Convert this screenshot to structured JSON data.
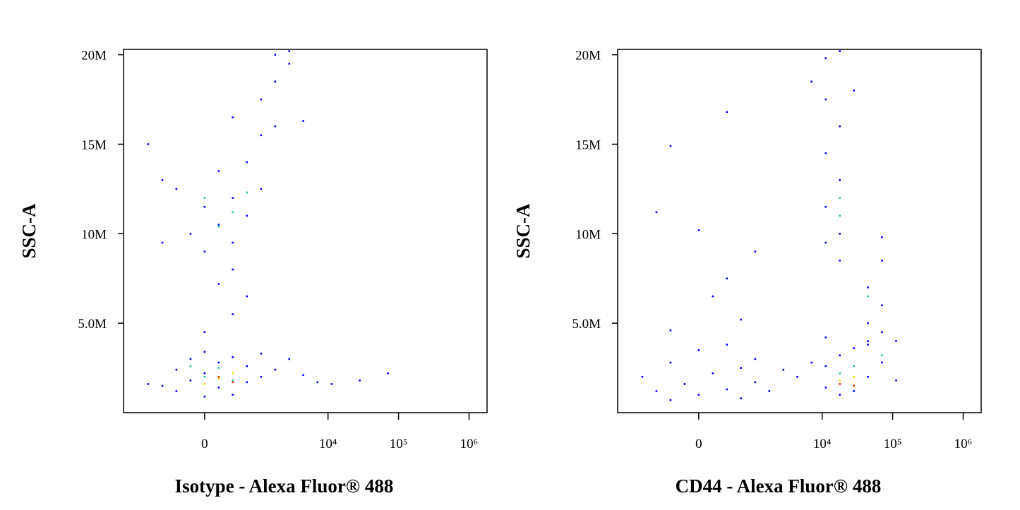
{
  "chart_data": [
    {
      "type": "scatter",
      "xlabel": "Isotype - Alexa Fluor® 488",
      "ylabel": "SSC-A",
      "xscale": "biexponential",
      "xlim": [
        -2500,
        1800000
      ],
      "xticks": [
        0,
        {
          "value": 10000,
          "label": "10⁴"
        },
        {
          "value": 100000,
          "label": "10⁵"
        },
        {
          "value": 1000000,
          "label": "10⁶"
        }
      ],
      "ylim": [
        0,
        20300000
      ],
      "yticks": [
        {
          "value": 5000000,
          "label": "5.0M"
        },
        {
          "value": 10000000,
          "label": "10M"
        },
        {
          "value": 15000000,
          "label": "15M"
        },
        {
          "value": 20000000,
          "label": "20M"
        }
      ],
      "series": [
        {
          "color": "#0000ff",
          "x": [
            -663,
            -376,
            -376,
            -170,
            -170,
            0,
            0,
            0,
            170,
            170,
            376,
            376,
            663,
            663,
            1096,
            1096,
            1762,
            -1096,
            2810,
            4450,
            11250,
            28200,
            70800,
            7080,
            0,
            376,
            663,
            170,
            376,
            -376,
            -170,
            0,
            0,
            170,
            170,
            376,
            376,
            663,
            663,
            -663,
            -663,
            1096,
            1096,
            -1096,
            376,
            1096,
            1762,
            1762,
            2810,
            2810,
            1762,
            4450
          ],
          "y": [
            1500000,
            2400000,
            1200000,
            3000000,
            1800000,
            2200000,
            900000,
            3400000,
            1400000,
            2800000,
            1000000,
            3100000,
            1700000,
            2600000,
            2000000,
            3300000,
            2400000,
            1600000,
            3000000,
            2100000,
            1600000,
            1800000,
            2200000,
            1700000,
            4500000,
            5500000,
            6500000,
            7200000,
            8000000,
            12500000,
            10000000,
            11500000,
            9000000,
            13500000,
            10500000,
            12000000,
            9500000,
            14000000,
            11000000,
            13000000,
            9500000,
            12500000,
            15500000,
            15000000,
            16500000,
            17500000,
            18500000,
            16000000,
            19500000,
            20200000,
            20000000,
            16300000
          ]
        },
        {
          "color": "#20c8a0",
          "x": [
            0,
            170,
            376,
            -170,
            376,
            170,
            663,
            0
          ],
          "y": [
            2000000,
            2500000,
            1800000,
            2600000,
            11200000,
            10400000,
            12300000,
            12000000
          ]
        },
        {
          "color": "#f0e000",
          "x": [
            170,
            376,
            0
          ],
          "y": [
            1900000,
            2200000,
            1600000
          ]
        },
        {
          "color": "#ff3000",
          "x": [
            170,
            376
          ],
          "y": [
            2000000,
            1700000
          ]
        }
      ]
    },
    {
      "type": "scatter",
      "xlabel": "CD44 - Alexa Fluor® 488",
      "ylabel": "SSC-A",
      "xscale": "biexponential",
      "xlim": [
        -2500,
        1800000
      ],
      "xticks": [
        0,
        {
          "value": 10000,
          "label": "10⁴"
        },
        {
          "value": 100000,
          "label": "10⁵"
        },
        {
          "value": 1000000,
          "label": "10⁶"
        }
      ],
      "ylim": [
        0,
        20300000
      ],
      "yticks": [
        {
          "value": 5000000,
          "label": "5.0M"
        },
        {
          "value": 10000000,
          "label": "10M"
        },
        {
          "value": 15000000,
          "label": "15M"
        },
        {
          "value": 20000000,
          "label": "20M"
        }
      ],
      "series": [
        {
          "color": "#0000ff",
          "x": [
            -1096,
            -663,
            -376,
            -376,
            -170,
            0,
            0,
            170,
            376,
            376,
            663,
            663,
            1096,
            1096,
            1762,
            2810,
            -376,
            170,
            376,
            0,
            -663,
            376,
            -376,
            1096,
            663,
            7080,
            11250,
            11250,
            17800,
            17800,
            28200,
            28200,
            44700,
            44700,
            70800,
            112000,
            11250,
            4450,
            11250,
            17800,
            11250,
            17800,
            11250,
            17800,
            11250,
            17800,
            17800,
            11250,
            28200,
            7080,
            44700,
            44700,
            70800,
            70800,
            70800,
            44700,
            112000,
            70800
          ],
          "y": [
            2000000,
            1200000,
            2800000,
            700000,
            1600000,
            3500000,
            1000000,
            2200000,
            1300000,
            3800000,
            800000,
            2500000,
            1700000,
            3000000,
            1200000,
            2400000,
            4600000,
            6500000,
            7500000,
            10200000,
            11200000,
            16800000,
            14900000,
            9000000,
            5200000,
            2800000,
            1400000,
            2600000,
            1000000,
            3200000,
            1200000,
            3600000,
            2000000,
            4000000,
            2800000,
            1800000,
            4200000,
            2000000,
            19800000,
            20200000,
            17500000,
            16000000,
            14500000,
            13000000,
            11500000,
            10000000,
            8500000,
            9500000,
            18000000,
            18500000,
            5000000,
            7000000,
            6000000,
            8500000,
            9800000,
            3800000,
            4000000,
            4500000
          ]
        },
        {
          "color": "#20c8a0",
          "x": [
            17800,
            28200,
            17800,
            17800,
            44700,
            70800
          ],
          "y": [
            2200000,
            2600000,
            12000000,
            11000000,
            6500000,
            3200000
          ]
        },
        {
          "color": "#f0e000",
          "x": [
            17800,
            28200
          ],
          "y": [
            1800000,
            2000000
          ]
        },
        {
          "color": "#ff3000",
          "x": [
            17800,
            28200
          ],
          "y": [
            1600000,
            1500000
          ]
        }
      ]
    }
  ]
}
